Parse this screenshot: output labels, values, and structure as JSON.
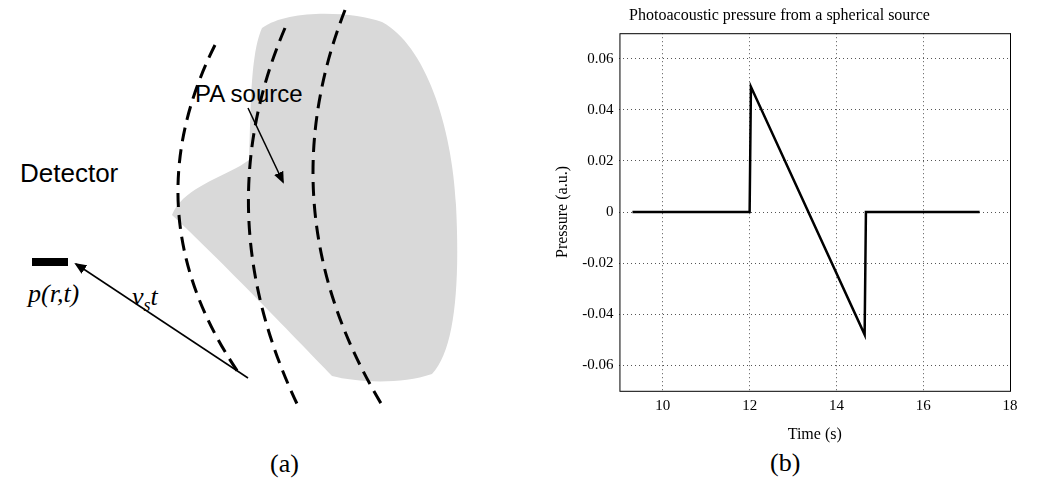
{
  "diagram": {
    "panel_label": "(a)",
    "labels": {
      "detector": "Detector",
      "source": "PA source",
      "signal": "p(r,t)",
      "distance": {
        "symbol": "v",
        "subscript": "s",
        "suffix": "t"
      }
    }
  },
  "chart_data": {
    "type": "line",
    "panel_label": "(b)",
    "title": "Photoacoustic pressure from a spherical source",
    "x_label": "Time (s)",
    "y_label": "Pressure (a.u.)",
    "series": [
      {
        "name": "pressure",
        "color": "#000000",
        "line_style": "solid",
        "x": [
          9.3,
          12.0,
          12.03,
          14.65,
          14.68,
          17.3
        ],
        "values": [
          0,
          0,
          0.049,
          -0.048,
          0,
          0
        ]
      }
    ],
    "xlim": [
      9,
      18
    ],
    "xticks": [
      10,
      12,
      14,
      16,
      18
    ],
    "ylim": [
      -0.07,
      0.07
    ],
    "yticks": [
      -0.06,
      -0.04,
      -0.02,
      0,
      0.02,
      0.04,
      0.06
    ],
    "grid": true
  }
}
